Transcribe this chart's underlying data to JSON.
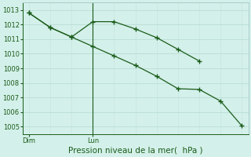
{
  "bg_color": "#d4f0ea",
  "grid_color_h": "#b8ddd5",
  "grid_color_v": "#c8e8e0",
  "line_color": "#1a5c1a",
  "marker": "+",
  "marker_size": 4,
  "marker_ew": 1.0,
  "line_width": 0.9,
  "ylim": [
    1004.5,
    1013.5
  ],
  "yticks": [
    1005,
    1006,
    1007,
    1008,
    1009,
    1010,
    1011,
    1012,
    1013
  ],
  "tick_fontsize": 6,
  "xlabel": "Pression niveau de la mer(  hPa )",
  "xlabel_fontsize": 7.5,
  "line1_x": [
    0,
    1,
    2,
    3,
    4,
    5,
    6,
    7,
    8
  ],
  "line1_y": [
    1012.8,
    1011.8,
    1011.15,
    1012.2,
    1012.2,
    1011.7,
    1011.1,
    1010.3,
    1009.5
  ],
  "line2_x": [
    0,
    1,
    2,
    3,
    4,
    5,
    6,
    7,
    8,
    9,
    10
  ],
  "line2_y": [
    1012.8,
    1011.8,
    1011.15,
    1010.5,
    1009.85,
    1009.2,
    1008.45,
    1007.6,
    1007.55,
    1006.75,
    1005.05
  ],
  "vline_x": 3,
  "dim_x": 0,
  "lun_x": 3,
  "xtick_positions": [
    0,
    3
  ],
  "xtick_labels": [
    "Dim",
    "Lun"
  ],
  "xlim": [
    -0.3,
    10.3
  ],
  "n_vgrid": 11,
  "spine_color": "#aacccc"
}
